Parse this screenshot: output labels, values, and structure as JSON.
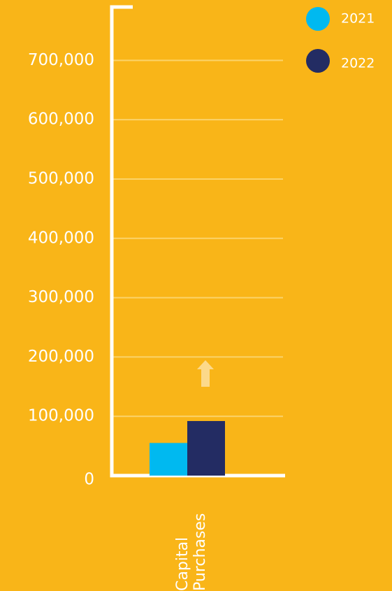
{
  "chart_data": {
    "type": "bar",
    "categories": [
      "Capital Purchases"
    ],
    "series": [
      {
        "name": "2021",
        "color": "#00b9f0",
        "values": [
          55000
        ]
      },
      {
        "name": "2022",
        "color": "#232c63",
        "values": [
          92000
        ]
      }
    ],
    "ylim": [
      0,
      790000
    ],
    "yticks": [
      0,
      {
        "value": 100000,
        "label": "100,000"
      },
      {
        "value": 200000,
        "label": "200,000"
      },
      {
        "value": 300000,
        "label": "300,000"
      },
      {
        "value": 400000,
        "label": "400,000"
      },
      {
        "value": 500000,
        "label": "500,000"
      },
      {
        "value": 600000,
        "label": "600,000"
      },
      {
        "value": 700000,
        "label": "700,000"
      }
    ],
    "grid": true
  }
}
